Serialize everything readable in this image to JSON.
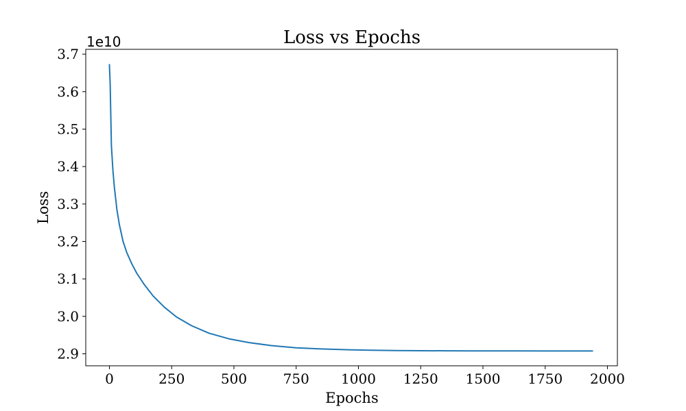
{
  "chart_data": {
    "type": "line",
    "title": "Loss vs Epochs",
    "xlabel": "Epochs",
    "ylabel": "Loss",
    "y_offset_label": "1e10",
    "xlim": [
      -95,
      2040
    ],
    "ylim": [
      2.868,
      3.713
    ],
    "grid": false,
    "legend": "none",
    "x_ticks": [
      {
        "value": 0,
        "label": "0"
      },
      {
        "value": 250,
        "label": "250"
      },
      {
        "value": 500,
        "label": "500"
      },
      {
        "value": 750,
        "label": "750"
      },
      {
        "value": 1000,
        "label": "1000"
      },
      {
        "value": 1250,
        "label": "1250"
      },
      {
        "value": 1500,
        "label": "1500"
      },
      {
        "value": 1750,
        "label": "1750"
      },
      {
        "value": 2000,
        "label": "2000"
      }
    ],
    "y_ticks": [
      {
        "value": 2.9,
        "label": "2.9"
      },
      {
        "value": 3.0,
        "label": "3.0"
      },
      {
        "value": 3.1,
        "label": "3.1"
      },
      {
        "value": 3.2,
        "label": "3.2"
      },
      {
        "value": 3.3,
        "label": "3.3"
      },
      {
        "value": 3.4,
        "label": "3.4"
      },
      {
        "value": 3.5,
        "label": "3.5"
      },
      {
        "value": 3.6,
        "label": "3.6"
      },
      {
        "value": 3.7,
        "label": "3.7"
      }
    ],
    "series": [
      {
        "color": "#1f77b4",
        "x": [
          0,
          3,
          8,
          14,
          20,
          30,
          40,
          55,
          70,
          90,
          110,
          140,
          175,
          220,
          270,
          330,
          400,
          480,
          560,
          650,
          750,
          850,
          950,
          1050,
          1150,
          1250,
          1350,
          1450,
          1550,
          1650,
          1750,
          1850,
          1940
        ],
        "y": [
          3.672,
          3.62,
          3.455,
          3.39,
          3.345,
          3.285,
          3.245,
          3.2,
          3.17,
          3.14,
          3.115,
          3.085,
          3.055,
          3.025,
          2.998,
          2.975,
          2.955,
          2.94,
          2.93,
          2.922,
          2.916,
          2.913,
          2.911,
          2.9095,
          2.9088,
          2.9083,
          2.908,
          2.9078,
          2.9077,
          2.9076,
          2.9075,
          2.9075,
          2.9075
        ]
      }
    ]
  }
}
